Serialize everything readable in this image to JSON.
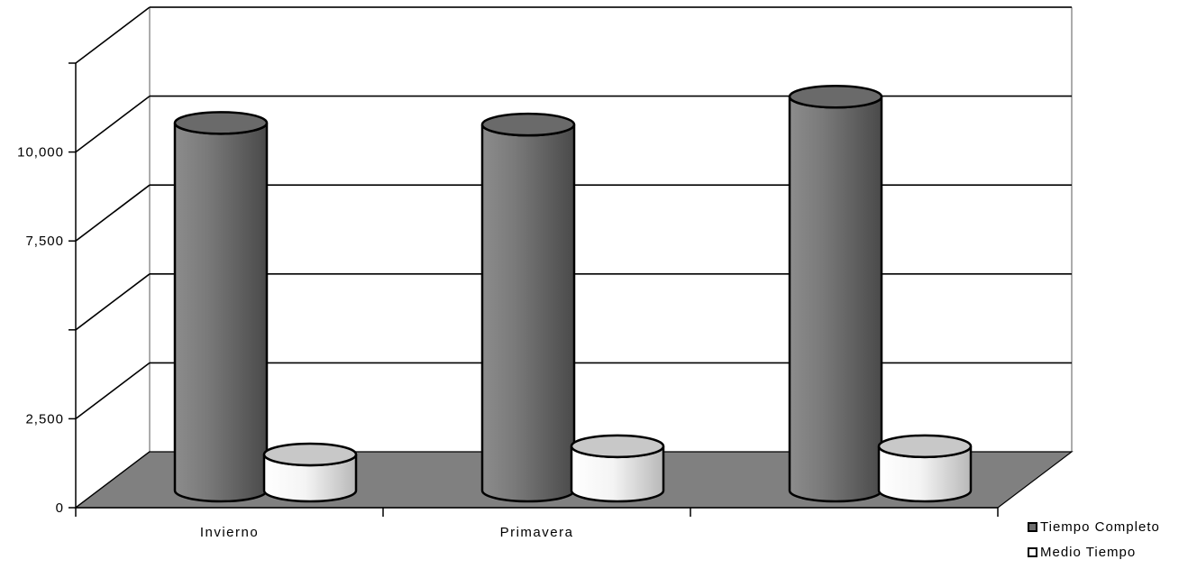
{
  "chart_data": {
    "type": "bar",
    "style": "3d-cylinder",
    "categories": [
      "Invierno",
      "Primavera",
      ""
    ],
    "series": [
      {
        "name": "Tiempo Completo",
        "color": "#6f6f6f",
        "values": [
          11200,
          11150,
          12000
        ]
      },
      {
        "name": "Medio Tiempo",
        "color": "#f2f2f2",
        "values": [
          1100,
          1350,
          1350
        ]
      }
    ],
    "y_ticks": [
      0,
      2500,
      5000,
      7500,
      10000,
      12500
    ],
    "y_tick_labels": [
      "0",
      "2,500",
      "",
      "7,500",
      "10,000",
      ""
    ],
    "ylim": [
      0,
      12500
    ],
    "grid": true,
    "floor_color": "#808080",
    "legend_position": "bottom-right",
    "title": "",
    "xlabel": "",
    "ylabel": ""
  }
}
